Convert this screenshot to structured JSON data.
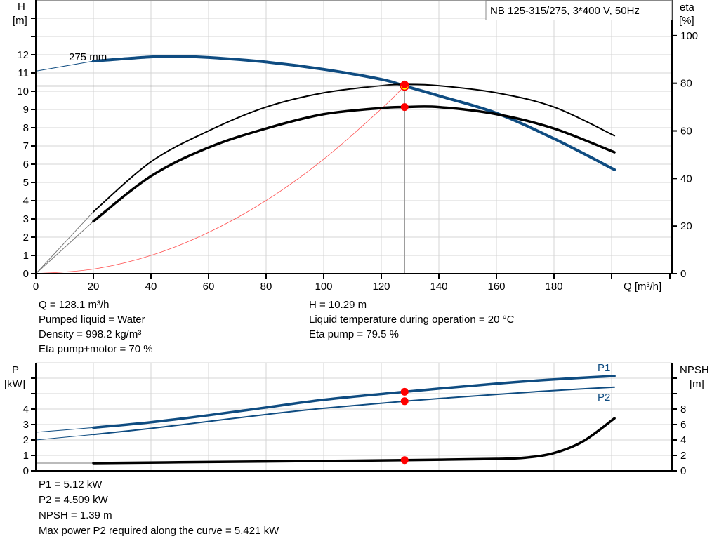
{
  "chart_data": [
    {
      "type": "line",
      "title": "NB 125-315/275, 3*400 V, 50Hz",
      "xlabel": "Q [m³/h]",
      "ylabel": "H [m]",
      "ylabel_name": "H",
      "ylabel_unit": "[m]",
      "y2label_name": "eta",
      "y2label_unit": "[%]",
      "xlim": [
        0,
        221
      ],
      "ylim": [
        0,
        15
      ],
      "y2lim": [
        0,
        115
      ],
      "x_ticks": [
        0,
        20,
        40,
        60,
        80,
        100,
        120,
        140,
        160,
        180
      ],
      "y_ticks": [
        0,
        1,
        2,
        3,
        4,
        5,
        6,
        7,
        8,
        9,
        10,
        11,
        12
      ],
      "y2_ticks": [
        0,
        20,
        40,
        60,
        80,
        100
      ],
      "grid": true,
      "curve_label": "275 mm",
      "series": [
        {
          "key": "H",
          "axis": "left",
          "color": "#0f4c81",
          "x": [
            0,
            20,
            40,
            50,
            60,
            80,
            100,
            120,
            128.1,
            140,
            160,
            180,
            201
          ],
          "y": [
            11.1,
            11.65,
            11.88,
            11.9,
            11.85,
            11.6,
            11.2,
            10.65,
            10.29,
            9.75,
            8.8,
            7.4,
            5.7
          ]
        },
        {
          "key": "eta_pump",
          "axis": "right",
          "color": "#000000",
          "x": [
            0,
            20,
            40,
            60,
            80,
            100,
            120,
            128.1,
            140,
            160,
            180,
            201
          ],
          "y": [
            0,
            26,
            47,
            60,
            70,
            76,
            79,
            79.5,
            79,
            76,
            70,
            58
          ]
        },
        {
          "key": "eta_pump_motor",
          "axis": "right",
          "color": "#000000",
          "x": [
            0,
            20,
            40,
            60,
            80,
            100,
            120,
            128.1,
            140,
            160,
            180,
            201
          ],
          "y": [
            0,
            22,
            41,
            53,
            61,
            67,
            69.6,
            70,
            70,
            67,
            61,
            51
          ]
        },
        {
          "key": "system_curve",
          "axis": "left",
          "color": "#ff5050",
          "x": [
            0,
            20,
            40,
            60,
            80,
            100,
            120,
            128.1
          ],
          "y": [
            0,
            0.25,
            1.0,
            2.26,
            4.01,
            6.27,
            9.03,
            10.29
          ]
        }
      ],
      "duty_point": {
        "Q": 128.1,
        "H": 10.29,
        "eta_pump": 79.5,
        "eta_pump_motor": 70
      }
    },
    {
      "type": "line",
      "ylabel_name": "P",
      "ylabel_unit": "[kW]",
      "y2label_name": "NPSH",
      "y2label_unit": "[m]",
      "xlim": [
        0,
        221
      ],
      "ylim": [
        0,
        7
      ],
      "y2lim": [
        0,
        14
      ],
      "y_ticks": [
        0,
        1,
        2,
        3,
        4
      ],
      "y2_ticks": [
        0,
        2,
        4,
        6,
        8
      ],
      "grid": true,
      "series": [
        {
          "key": "P1",
          "name": "P1",
          "axis": "left",
          "color": "#0f4c81",
          "x": [
            0,
            20,
            40,
            60,
            80,
            100,
            128.1,
            160,
            180,
            201
          ],
          "y": [
            2.5,
            2.8,
            3.15,
            3.6,
            4.1,
            4.6,
            5.12,
            5.65,
            5.92,
            6.14
          ]
        },
        {
          "key": "P2",
          "name": "P2",
          "axis": "left",
          "color": "#0f4c81",
          "x": [
            0,
            20,
            40,
            60,
            80,
            100,
            128.1,
            160,
            180,
            201
          ],
          "y": [
            2.0,
            2.35,
            2.75,
            3.2,
            3.65,
            4.05,
            4.509,
            4.95,
            5.2,
            5.42
          ]
        },
        {
          "key": "NPSH",
          "axis": "right",
          "color": "#000000",
          "x": [
            0,
            20,
            60,
            100,
            128.1,
            160,
            170,
            180,
            190,
            201
          ],
          "y": [
            1.0,
            1.0,
            1.15,
            1.28,
            1.39,
            1.55,
            1.7,
            2.3,
            3.8,
            6.8
          ]
        }
      ],
      "duty_point": {
        "Q": 128.1,
        "P1": 5.12,
        "P2": 4.509,
        "NPSH": 1.39
      }
    }
  ],
  "info_top": {
    "q": "Q = 128.1 m³/h",
    "liquid": "Pumped liquid = Water",
    "density": "Density = 998.2 kg/m³",
    "eta_pm": "Eta pump+motor = 70 %",
    "h": "H = 10.29 m",
    "temp": "Liquid temperature during operation = 20 °C",
    "eta_p": "Eta pump = 79.5 %"
  },
  "info_bottom": {
    "p1": "P1 = 5.12 kW",
    "p2": "P2 = 4.509 kW",
    "npsh": "NPSH = 1.39 m",
    "maxp2": "Max power P2 required along the curve = 5.421 kW"
  }
}
